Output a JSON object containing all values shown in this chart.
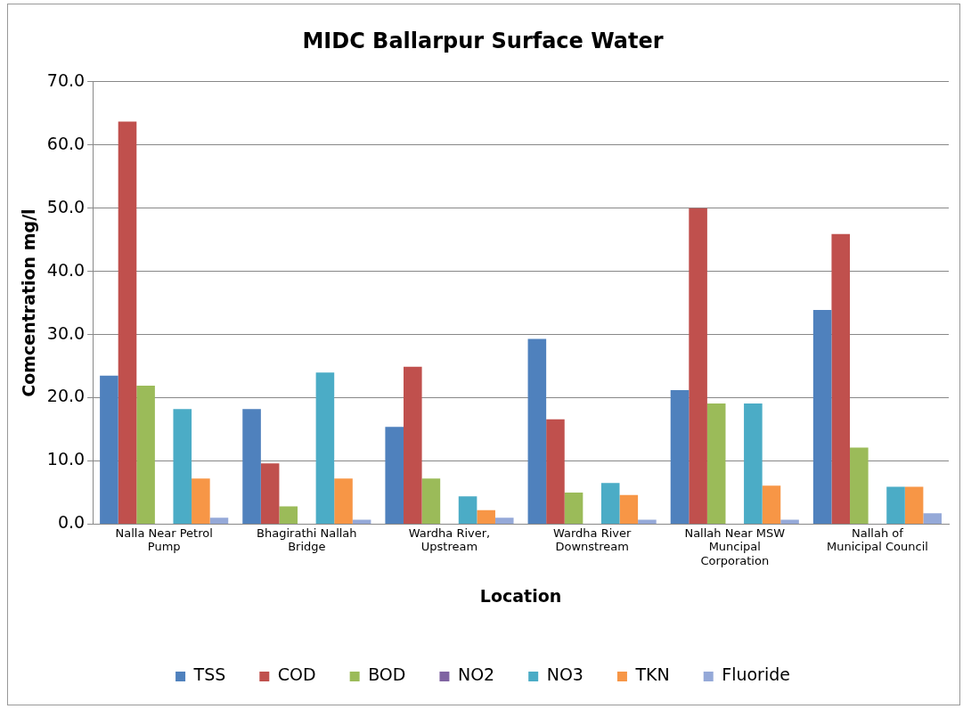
{
  "chart_data": {
    "type": "bar",
    "title": "MIDC Ballarpur Surface Water",
    "xlabel": "Location",
    "ylabel": "Comcentration mg/l",
    "categories": [
      "Nalla Near Petrol Pump",
      "Bhagirathi Nallah Bridge",
      "Wardha River, Upstream",
      "Wardha River Downstream",
      "Nallah Near MSW Muncipal Corporation",
      "Nallah of Municipal Council"
    ],
    "series": [
      {
        "name": "TSS",
        "color": "#4f81bd",
        "values": [
          23.5,
          18.2,
          15.4,
          29.3,
          21.2,
          33.9
        ]
      },
      {
        "name": "COD",
        "color": "#c0504d",
        "values": [
          63.7,
          9.6,
          24.9,
          16.6,
          50.0,
          45.9
        ]
      },
      {
        "name": "BOD",
        "color": "#9bbb59",
        "values": [
          21.9,
          2.8,
          7.2,
          5.0,
          19.1,
          12.1
        ]
      },
      {
        "name": "NO2",
        "color": "#8064a2",
        "values": [
          0,
          0,
          0,
          0,
          0,
          0
        ]
      },
      {
        "name": "NO3",
        "color": "#4bacc6",
        "values": [
          18.2,
          24.0,
          4.4,
          6.5,
          19.1,
          5.9
        ]
      },
      {
        "name": "TKN",
        "color": "#f79646",
        "values": [
          7.2,
          7.2,
          2.2,
          4.6,
          6.1,
          5.9
        ]
      },
      {
        "name": "Fluoride",
        "color": "#95a9d8",
        "values": [
          1.0,
          0.7,
          1.0,
          0.7,
          0.7,
          1.7
        ]
      }
    ],
    "ylim": [
      0,
      70
    ],
    "yticks": [
      {
        "value": 0,
        "label": "0.0"
      },
      {
        "value": 10,
        "label": "10.0"
      },
      {
        "value": 20,
        "label": "20.0"
      },
      {
        "value": 30,
        "label": "30.0"
      },
      {
        "value": 40,
        "label": "40.0"
      },
      {
        "value": 50,
        "label": "50.0"
      },
      {
        "value": 60,
        "label": "60.0"
      },
      {
        "value": 70,
        "label": "70.0"
      }
    ],
    "grid": "y",
    "legend": "bottom"
  }
}
